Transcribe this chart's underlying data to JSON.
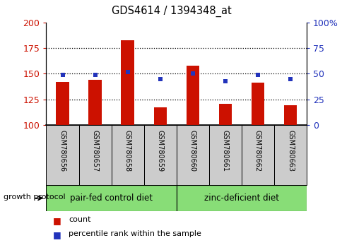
{
  "title": "GDS4614 / 1394348_at",
  "samples": [
    "GSM780656",
    "GSM780657",
    "GSM780658",
    "GSM780659",
    "GSM780660",
    "GSM780661",
    "GSM780662",
    "GSM780663"
  ],
  "counts": [
    142,
    144,
    183,
    117,
    158,
    121,
    141,
    119
  ],
  "percentiles": [
    49,
    49,
    52,
    45,
    50,
    43,
    49,
    45
  ],
  "ylim_left": [
    100,
    200
  ],
  "ylim_right": [
    0,
    100
  ],
  "yticks_left": [
    100,
    125,
    150,
    175,
    200
  ],
  "yticks_right": [
    0,
    25,
    50,
    75,
    100
  ],
  "bar_color": "#cc1100",
  "dot_color": "#2233bb",
  "bg_color": "#ffffff",
  "group1_label": "pair-fed control diet",
  "group2_label": "zinc-deficient diet",
  "group1_count": 4,
  "group2_count": 4,
  "group_bg_color": "#88dd77",
  "tick_bg_color": "#cccccc",
  "legend_count_label": "count",
  "legend_pct_label": "percentile rank within the sample",
  "protocol_label": "growth protocol",
  "dotted_lines": [
    125,
    150,
    175
  ]
}
